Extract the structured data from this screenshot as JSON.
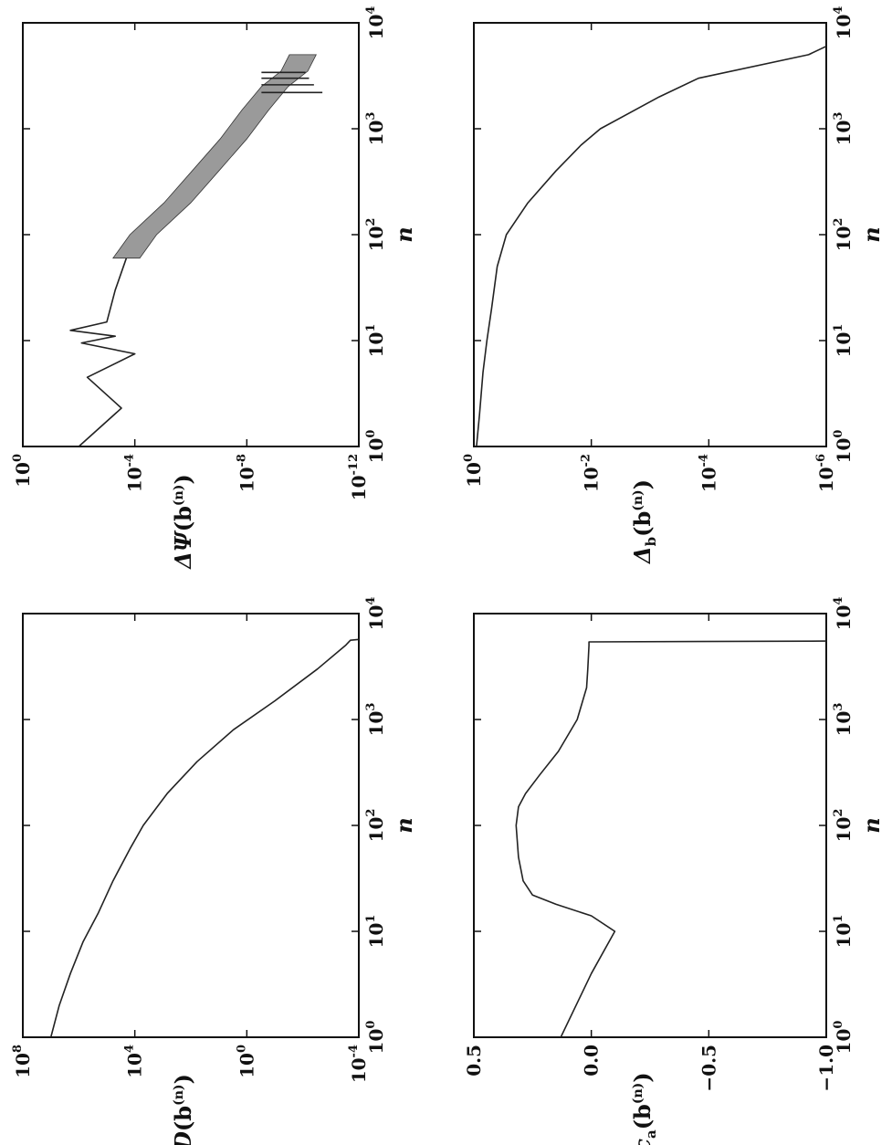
{
  "chart_data": [
    {
      "id": "bottom-left",
      "type": "line",
      "xlabel": "n",
      "ylabel": "D(b^(n))",
      "xscale": "log",
      "yscale": "log",
      "xlim": [
        1,
        10000
      ],
      "ylim": [
        0.0001,
        100000000
      ],
      "x_ticks": [
        {
          "base": "10",
          "exp": "0",
          "value": 1
        },
        {
          "base": "10",
          "exp": "1",
          "value": 10
        },
        {
          "base": "10",
          "exp": "2",
          "value": 100
        },
        {
          "base": "10",
          "exp": "3",
          "value": 1000
        },
        {
          "base": "10",
          "exp": "4",
          "value": 10000
        }
      ],
      "y_ticks": [
        {
          "base": "10",
          "exp": "8",
          "value": 100000000
        },
        {
          "base": "10",
          "exp": "4",
          "value": 10000
        },
        {
          "base": "10",
          "exp": "0",
          "value": 1
        },
        {
          "base": "10",
          "exp": "-4",
          "value": 0.0001
        }
      ],
      "series": [
        {
          "x": [
            1,
            2,
            4,
            8,
            15,
            30,
            60,
            100,
            200,
            400,
            800,
            1500,
            3000,
            5000,
            5600,
            5700
          ],
          "y": [
            10000000,
            5000000,
            2000000,
            700000,
            200000,
            60000,
            15000,
            5000,
            700,
            60,
            3,
            0.1,
            0.003,
            0.0003,
            0.0002,
            0.0001
          ]
        }
      ]
    },
    {
      "id": "top-left",
      "type": "line",
      "xlabel": "n",
      "ylabel": "ΔΨ(b^(n))",
      "xscale": "log",
      "yscale": "log",
      "xlim": [
        1,
        10000
      ],
      "ylim": [
        1e-12,
        1
      ],
      "x_ticks": [
        {
          "base": "10",
          "exp": "0",
          "value": 1
        },
        {
          "base": "10",
          "exp": "1",
          "value": 10
        },
        {
          "base": "10",
          "exp": "2",
          "value": 100
        },
        {
          "base": "10",
          "exp": "3",
          "value": 1000
        },
        {
          "base": "10",
          "exp": "4",
          "value": 10000
        }
      ],
      "y_ticks": [
        {
          "base": "10",
          "exp": "0",
          "value": 1
        },
        {
          "base": "10",
          "exp": "-4",
          "value": 0.0001
        },
        {
          "base": "10",
          "exp": "-8",
          "value": 1e-08
        },
        {
          "base": "10",
          "exp": "-12",
          "value": 1e-12
        }
      ],
      "series": [
        {
          "x": [
            1,
            2.3,
            4.5,
            7.5,
            9.5,
            11,
            12.5,
            15,
            30,
            60,
            100,
            200,
            400,
            800,
            1500,
            2500,
            3500,
            5000
          ],
          "y": [
            0.01,
            0.0003,
            0.005,
            0.0001,
            0.008,
            0.0005,
            0.02,
            0.001,
            0.0005,
            0.0002,
            5e-05,
            3e-06,
            3e-07,
            3e-08,
            5e-09,
            1e-09,
            2e-10,
            1e-10
          ]
        }
      ]
    },
    {
      "id": "bottom-right",
      "type": "line",
      "xlabel": "n",
      "ylabel": "c_a(b^(n))",
      "xscale": "log",
      "yscale": "linear",
      "xlim": [
        1,
        10000
      ],
      "ylim": [
        -1.0,
        0.5
      ],
      "x_ticks": [
        {
          "base": "10",
          "exp": "0",
          "value": 1
        },
        {
          "base": "10",
          "exp": "1",
          "value": 10
        },
        {
          "base": "10",
          "exp": "2",
          "value": 100
        },
        {
          "base": "10",
          "exp": "3",
          "value": 1000
        },
        {
          "base": "10",
          "exp": "4",
          "value": 10000
        }
      ],
      "y_ticks": [
        {
          "label": "0.5",
          "value": 0.5
        },
        {
          "label": "0.0",
          "value": 0.0
        },
        {
          "label": "−0.5",
          "value": -0.5
        },
        {
          "label": "−1.0",
          "value": -1.0
        }
      ],
      "series": [
        {
          "x": [
            1,
            4,
            10,
            14,
            18,
            22,
            30,
            50,
            100,
            150,
            200,
            300,
            500,
            1000,
            2000,
            3000,
            5000,
            5400,
            5500
          ],
          "y": [
            0.13,
            0.0,
            -0.1,
            0.0,
            0.15,
            0.25,
            0.29,
            0.31,
            0.32,
            0.31,
            0.28,
            0.22,
            0.14,
            0.06,
            0.02,
            0.015,
            0.01,
            0.01,
            -1.0
          ]
        }
      ]
    },
    {
      "id": "top-right",
      "type": "line",
      "xlabel": "n",
      "ylabel": "Δ_b(b^(n))",
      "xscale": "log",
      "yscale": "log",
      "xlim": [
        1,
        10000
      ],
      "ylim": [
        1e-06,
        1
      ],
      "x_ticks": [
        {
          "base": "10",
          "exp": "0",
          "value": 1
        },
        {
          "base": "10",
          "exp": "1",
          "value": 10
        },
        {
          "base": "10",
          "exp": "2",
          "value": 100
        },
        {
          "base": "10",
          "exp": "3",
          "value": 1000
        },
        {
          "base": "10",
          "exp": "4",
          "value": 10000
        }
      ],
      "y_ticks": [
        {
          "base": "10",
          "exp": "0",
          "value": 1
        },
        {
          "base": "10",
          "exp": "-2",
          "value": 0.01
        },
        {
          "base": "10",
          "exp": "-4",
          "value": 0.0001
        },
        {
          "base": "10",
          "exp": "-6",
          "value": 1e-06
        }
      ],
      "series": [
        {
          "x": [
            1,
            2,
            5,
            10,
            20,
            50,
            100,
            200,
            400,
            700,
            1000,
            2000,
            3000,
            5000,
            6000
          ],
          "y": [
            0.9,
            0.8,
            0.7,
            0.6,
            0.5,
            0.4,
            0.28,
            0.12,
            0.04,
            0.015,
            0.007,
            0.0007,
            0.00015,
            2e-06,
            1e-06
          ]
        }
      ]
    }
  ]
}
